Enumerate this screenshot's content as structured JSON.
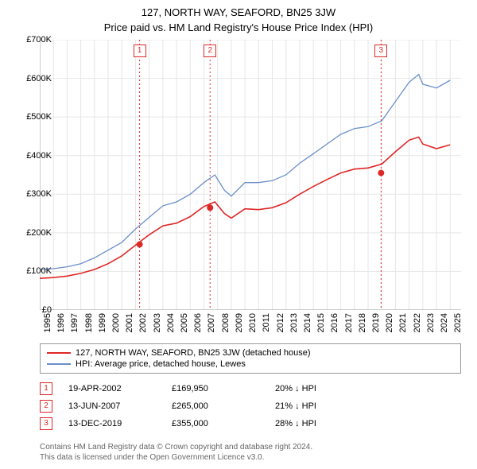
{
  "chart": {
    "title_main": "127, NORTH WAY, SEAFORD, BN25 3JW",
    "title_sub": "Price paid vs. HM Land Registry's House Price Index (HPI)",
    "background_color": "#ffffff",
    "plot_bg": "#ffffff",
    "grid_color": "#e6e6e6",
    "axis_color": "#999999",
    "x": {
      "min": 1995,
      "max": 2025.8,
      "ticks": [
        1995,
        1996,
        1997,
        1998,
        1999,
        2000,
        2001,
        2002,
        2003,
        2004,
        2005,
        2006,
        2007,
        2008,
        2009,
        2010,
        2011,
        2012,
        2013,
        2014,
        2015,
        2016,
        2017,
        2018,
        2019,
        2020,
        2021,
        2022,
        2023,
        2024,
        2025
      ],
      "label_fontsize": 11
    },
    "y": {
      "min": 0,
      "max": 700000,
      "ticks": [
        0,
        100000,
        200000,
        300000,
        400000,
        500000,
        600000,
        700000
      ],
      "tick_labels": [
        "£0",
        "£100K",
        "£200K",
        "£300K",
        "£400K",
        "£500K",
        "£600K",
        "£700K"
      ],
      "label_fontsize": 11
    },
    "series": [
      {
        "name": "hpi",
        "label": "HPI: Average price, detached house, Lewes",
        "color": "#6b8fc9",
        "width": 1.3,
        "data": [
          [
            1995,
            105000
          ],
          [
            1996,
            107000
          ],
          [
            1997,
            112000
          ],
          [
            1998,
            120000
          ],
          [
            1999,
            135000
          ],
          [
            2000,
            155000
          ],
          [
            2001,
            175000
          ],
          [
            2002,
            210000
          ],
          [
            2003,
            240000
          ],
          [
            2004,
            270000
          ],
          [
            2005,
            280000
          ],
          [
            2006,
            300000
          ],
          [
            2007,
            330000
          ],
          [
            2007.8,
            350000
          ],
          [
            2008.5,
            310000
          ],
          [
            2009,
            295000
          ],
          [
            2010,
            330000
          ],
          [
            2011,
            330000
          ],
          [
            2012,
            335000
          ],
          [
            2013,
            350000
          ],
          [
            2014,
            380000
          ],
          [
            2015,
            405000
          ],
          [
            2016,
            430000
          ],
          [
            2017,
            455000
          ],
          [
            2018,
            470000
          ],
          [
            2019,
            475000
          ],
          [
            2020,
            490000
          ],
          [
            2021,
            540000
          ],
          [
            2022,
            590000
          ],
          [
            2022.7,
            610000
          ],
          [
            2023,
            585000
          ],
          [
            2024,
            575000
          ],
          [
            2025,
            595000
          ]
        ]
      },
      {
        "name": "subject",
        "label": "127, NORTH WAY, SEAFORD, BN25 3JW (detached house)",
        "color": "#de2827",
        "width": 1.6,
        "data": [
          [
            1995,
            82000
          ],
          [
            1996,
            84000
          ],
          [
            1997,
            88000
          ],
          [
            1998,
            95000
          ],
          [
            1999,
            105000
          ],
          [
            2000,
            120000
          ],
          [
            2001,
            140000
          ],
          [
            2002,
            168000
          ],
          [
            2003,
            195000
          ],
          [
            2004,
            218000
          ],
          [
            2005,
            225000
          ],
          [
            2006,
            242000
          ],
          [
            2007,
            268000
          ],
          [
            2007.8,
            280000
          ],
          [
            2008.5,
            250000
          ],
          [
            2009,
            238000
          ],
          [
            2010,
            262000
          ],
          [
            2011,
            260000
          ],
          [
            2012,
            265000
          ],
          [
            2013,
            278000
          ],
          [
            2014,
            300000
          ],
          [
            2015,
            320000
          ],
          [
            2016,
            338000
          ],
          [
            2017,
            355000
          ],
          [
            2018,
            365000
          ],
          [
            2019,
            368000
          ],
          [
            2020,
            378000
          ],
          [
            2021,
            410000
          ],
          [
            2022,
            440000
          ],
          [
            2022.7,
            448000
          ],
          [
            2023,
            430000
          ],
          [
            2024,
            418000
          ],
          [
            2025,
            428000
          ]
        ]
      }
    ],
    "events": [
      {
        "n": "1",
        "year": 2002.3,
        "date": "19-APR-2002",
        "price_val": 169950,
        "price": "£169,950",
        "delta": "20% ↓ HPI",
        "color": "#de2827"
      },
      {
        "n": "2",
        "year": 2007.45,
        "date": "13-JUN-2007",
        "price_val": 265000,
        "price": "£265,000",
        "delta": "21% ↓ HPI",
        "color": "#de2827"
      },
      {
        "n": "3",
        "year": 2019.95,
        "date": "13-DEC-2019",
        "price_val": 355000,
        "price": "£355,000",
        "delta": "28% ↓ HPI",
        "color": "#de2827"
      }
    ],
    "event_marker": {
      "radius": 4,
      "fill": "#de2827"
    },
    "event_line": {
      "color": "#de2827",
      "dash": "2,3",
      "width": 1
    },
    "legend": {
      "border_color": "#999999",
      "fontsize": 11
    },
    "footer": {
      "line1": "Contains HM Land Registry data © Crown copyright and database right 2024.",
      "line2": "This data is licensed under the Open Government Licence v3.0.",
      "color": "#666666",
      "fontsize": 10
    }
  }
}
